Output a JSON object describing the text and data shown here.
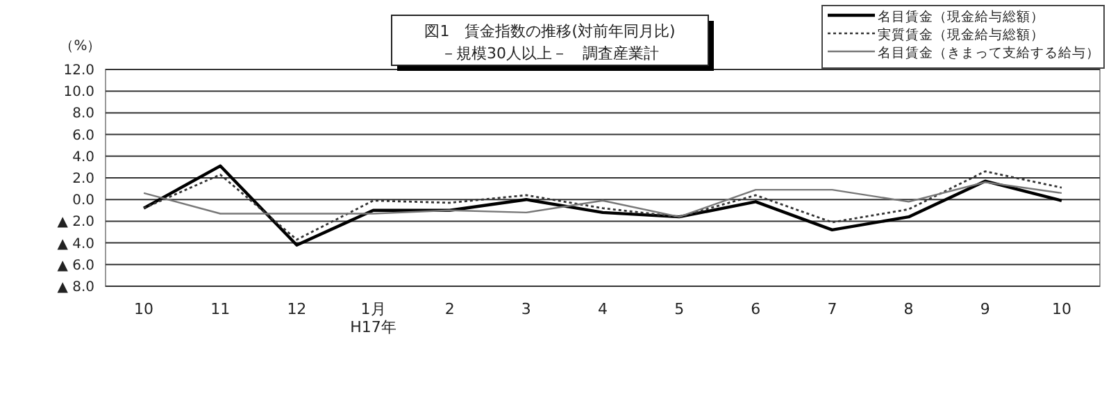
{
  "chart_data": {
    "type": "line",
    "title": "図1　賃金指数の推移(対前年同月比)",
    "subtitle": "－規模30人以上－　調査産業計",
    "ylabel": "（%）",
    "categories": [
      "10",
      "11",
      "12",
      "1月\nH17年",
      "2",
      "3",
      "4",
      "5",
      "6",
      "7",
      "8",
      "9",
      "10"
    ],
    "series": [
      {
        "name": "名目賃金（現金給与総額）",
        "color": "#000000",
        "line_style": "solid",
        "values": [
          -0.8,
          3.1,
          -4.2,
          -1.0,
          -1.0,
          0.0,
          -1.2,
          -1.6,
          -0.2,
          -2.8,
          -1.6,
          1.7,
          -0.1
        ]
      },
      {
        "name": "実質賃金（現金給与総額）",
        "color": "#333333",
        "line_style": "dotted",
        "values": [
          -0.8,
          2.3,
          -3.7,
          -0.1,
          -0.3,
          0.4,
          -0.8,
          -1.6,
          0.4,
          -2.1,
          -0.9,
          2.6,
          1.1
        ]
      },
      {
        "name": "名目賃金（きまって支給する給与）",
        "color": "#777777",
        "line_style": "solid",
        "values": [
          0.6,
          -1.3,
          -1.3,
          -1.3,
          -1.0,
          -1.2,
          -0.1,
          -1.6,
          0.9,
          0.9,
          -0.2,
          1.6,
          0.6
        ]
      }
    ],
    "ylim": [
      -8,
      12
    ],
    "yticks": [
      {
        "value": 12,
        "label": "12.0"
      },
      {
        "value": 10,
        "label": "10.0"
      },
      {
        "value": 8,
        "label": "8.0"
      },
      {
        "value": 6,
        "label": "6.0"
      },
      {
        "value": 4,
        "label": "4.0"
      },
      {
        "value": 2,
        "label": "2.0"
      },
      {
        "value": 0,
        "label": "0.0"
      },
      {
        "value": -2,
        "label": "▲ 2.0"
      },
      {
        "value": -4,
        "label": "▲ 4.0"
      },
      {
        "value": -6,
        "label": "▲ 6.0"
      },
      {
        "value": -8,
        "label": "▲ 8.0"
      }
    ],
    "grid": "y",
    "legend": "top right",
    "marker": "none"
  }
}
